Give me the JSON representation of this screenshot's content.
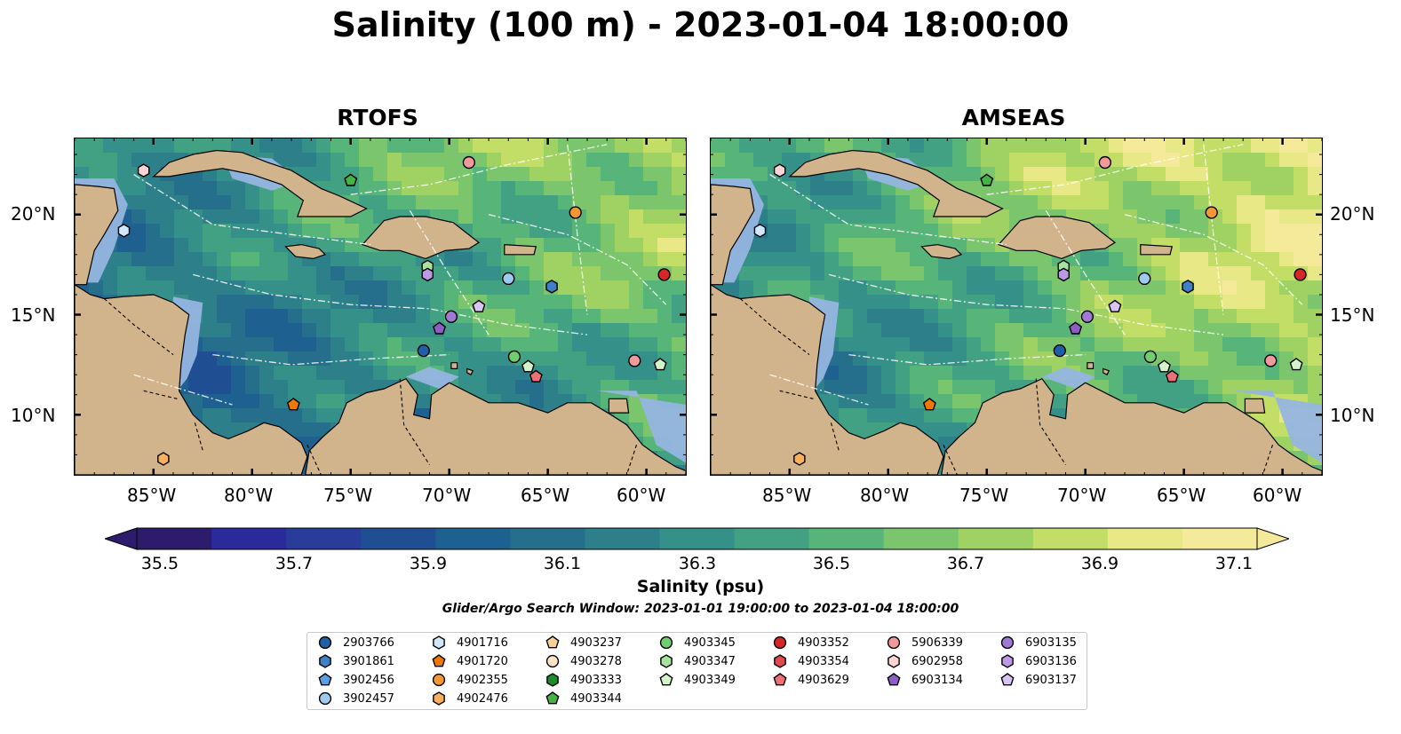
{
  "title": "Salinity (100 m) - 2023-01-04 18:00:00",
  "panels": [
    {
      "title": "RTOFS",
      "regime": "rtofs"
    },
    {
      "title": "AMSEAS",
      "regime": "amseas"
    }
  ],
  "lat_labels": [
    "20°N",
    "15°N",
    "10°N"
  ],
  "lon_labels": [
    "85°W",
    "80°W",
    "75°W",
    "70°W",
    "65°W",
    "60°W"
  ],
  "colorbar": {
    "label": "Salinity (psu)",
    "min": 35.5,
    "max": 37.1,
    "step": 0.1,
    "extend": "both",
    "ticks": [
      "35.5",
      "35.7",
      "35.9",
      "36.1",
      "36.3",
      "36.5",
      "36.7",
      "36.9",
      "37.1"
    ],
    "colors": [
      "#2c1c6b",
      "#2a2a9a",
      "#2a3c9a",
      "#1f4f92",
      "#1e6090",
      "#266f8c",
      "#2d7f8a",
      "#35908a",
      "#43a183",
      "#58b57a",
      "#7bc56c",
      "#9fd262",
      "#c3de66",
      "#e8e886",
      "#f4ea9a"
    ],
    "cmap": "haline"
  },
  "search_window": "Glider/Argo Search Window: 2023-01-01 19:00:00 to 2023-01-04 18:00:00",
  "legend": [
    {
      "id": "2903766",
      "shape": "circle",
      "color": "#1f5fa8"
    },
    {
      "id": "3901861",
      "shape": "hexagon",
      "color": "#3f7fc8"
    },
    {
      "id": "3902456",
      "shape": "pentagon",
      "color": "#5b9fe0"
    },
    {
      "id": "3902457",
      "shape": "circle",
      "color": "#9fcaf0"
    },
    {
      "id": "4901716",
      "shape": "hexagon",
      "color": "#cfe8fa"
    },
    {
      "id": "4901720",
      "shape": "pentagon",
      "color": "#f07800"
    },
    {
      "id": "4902355",
      "shape": "circle",
      "color": "#f59632"
    },
    {
      "id": "4902476",
      "shape": "hexagon",
      "color": "#f8b060"
    },
    {
      "id": "4903237",
      "shape": "pentagon",
      "color": "#fbcf98"
    },
    {
      "id": "4903278",
      "shape": "circle",
      "color": "#fde3c8"
    },
    {
      "id": "4903333",
      "shape": "hexagon",
      "color": "#1e8c2c"
    },
    {
      "id": "4903344",
      "shape": "pentagon",
      "color": "#45b245"
    },
    {
      "id": "4903345",
      "shape": "circle",
      "color": "#6fcf6f"
    },
    {
      "id": "4903347",
      "shape": "hexagon",
      "color": "#a6e4a0"
    },
    {
      "id": "4903349",
      "shape": "pentagon",
      "color": "#d4f5cc"
    },
    {
      "id": "4903352",
      "shape": "circle",
      "color": "#d62728"
    },
    {
      "id": "4903354",
      "shape": "hexagon",
      "color": "#e04a50"
    },
    {
      "id": "4903629",
      "shape": "pentagon",
      "color": "#ec7078"
    },
    {
      "id": "5906339",
      "shape": "circle",
      "color": "#f29a9a"
    },
    {
      "id": "6902958",
      "shape": "hexagon",
      "color": "#fbd4d4"
    },
    {
      "id": "6903134",
      "shape": "pentagon",
      "color": "#8c5fc4"
    },
    {
      "id": "6903135",
      "shape": "circle",
      "color": "#a07ad2"
    },
    {
      "id": "6903136",
      "shape": "hexagon",
      "color": "#bd98e4"
    },
    {
      "id": "6903137",
      "shape": "pentagon",
      "color": "#dcc3f5"
    }
  ],
  "floats": [
    {
      "id": "6902958",
      "lon": -85.5,
      "lat": 22.2
    },
    {
      "id": "4901716",
      "lon": -86.5,
      "lat": 19.2
    },
    {
      "id": "4903344",
      "lon": -75.0,
      "lat": 21.7
    },
    {
      "id": "5906339",
      "lon": -69.0,
      "lat": 22.6
    },
    {
      "id": "4902355",
      "lon": -63.6,
      "lat": 20.1
    },
    {
      "id": "4903352",
      "lon": -59.1,
      "lat": 17.0
    },
    {
      "id": "4903347",
      "lon": -71.1,
      "lat": 17.4
    },
    {
      "id": "6903136",
      "lon": -71.1,
      "lat": 17.0
    },
    {
      "id": "3902457",
      "lon": -67.0,
      "lat": 16.8
    },
    {
      "id": "3901861",
      "lon": -64.8,
      "lat": 16.4
    },
    {
      "id": "6903135",
      "lon": -69.9,
      "lat": 14.9
    },
    {
      "id": "6903137",
      "lon": -68.5,
      "lat": 15.4
    },
    {
      "id": "6903134",
      "lon": -70.5,
      "lat": 14.3
    },
    {
      "id": "2903766",
      "lon": -71.3,
      "lat": 13.2
    },
    {
      "id": "4903345",
      "lon": -66.7,
      "lat": 12.9
    },
    {
      "id": "4903349",
      "lon": -66.0,
      "lat": 12.4
    },
    {
      "id": "4903629",
      "lon": -65.6,
      "lat": 11.9
    },
    {
      "id": "5906339",
      "lon": -60.6,
      "lat": 12.7
    },
    {
      "id": "4903349",
      "lon": -59.3,
      "lat": 12.5
    },
    {
      "id": "4901720",
      "lon": -77.9,
      "lat": 10.5
    },
    {
      "id": "4902476",
      "lon": -84.5,
      "lat": 7.8
    }
  ]
}
